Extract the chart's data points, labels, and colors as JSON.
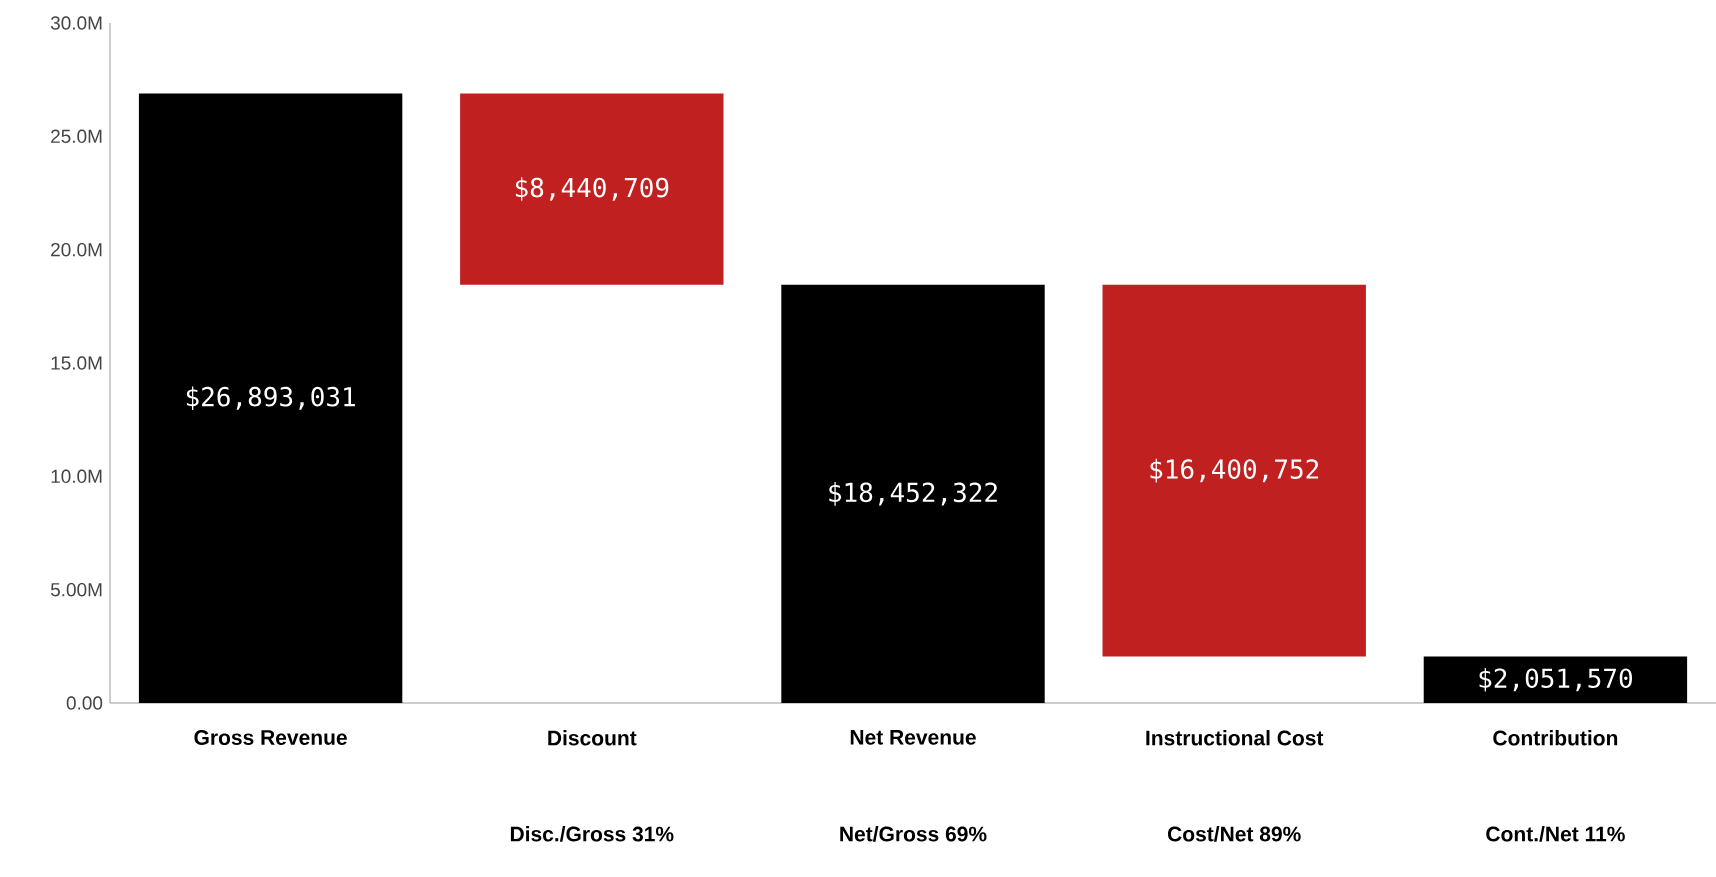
{
  "chart_data": {
    "type": "bar",
    "categories": [
      "Gross Revenue",
      "Discount",
      "Net Revenue",
      "Instructional Cost",
      "Contribution"
    ],
    "values": [
      26893031,
      8440709,
      18452322,
      16400752,
      2051570
    ],
    "base": [
      0,
      18452322,
      0,
      2051570,
      0
    ],
    "colors": [
      "#000000",
      "#c0201f",
      "#000000",
      "#c0201f",
      "#000000"
    ],
    "value_labels": [
      "$26,893,031",
      "$8,440,709",
      "$18,452,322",
      "$16,400,752",
      "$2,051,570"
    ],
    "ylim": [
      0,
      30000000
    ],
    "yticks": [
      {
        "value": 0,
        "label": "0.00"
      },
      {
        "value": 5000000,
        "label": "5.00M"
      },
      {
        "value": 10000000,
        "label": "10.0M"
      },
      {
        "value": 15000000,
        "label": "15.0M"
      },
      {
        "value": 20000000,
        "label": "20.0M"
      },
      {
        "value": 25000000,
        "label": "25.0M"
      },
      {
        "value": 30000000,
        "label": "30.0M"
      }
    ],
    "annotations": [
      "Disc./Gross 31%",
      "Net/Gross 69%",
      "Cost/Net 89%",
      "Cont./Net 11%"
    ],
    "grid": false
  }
}
